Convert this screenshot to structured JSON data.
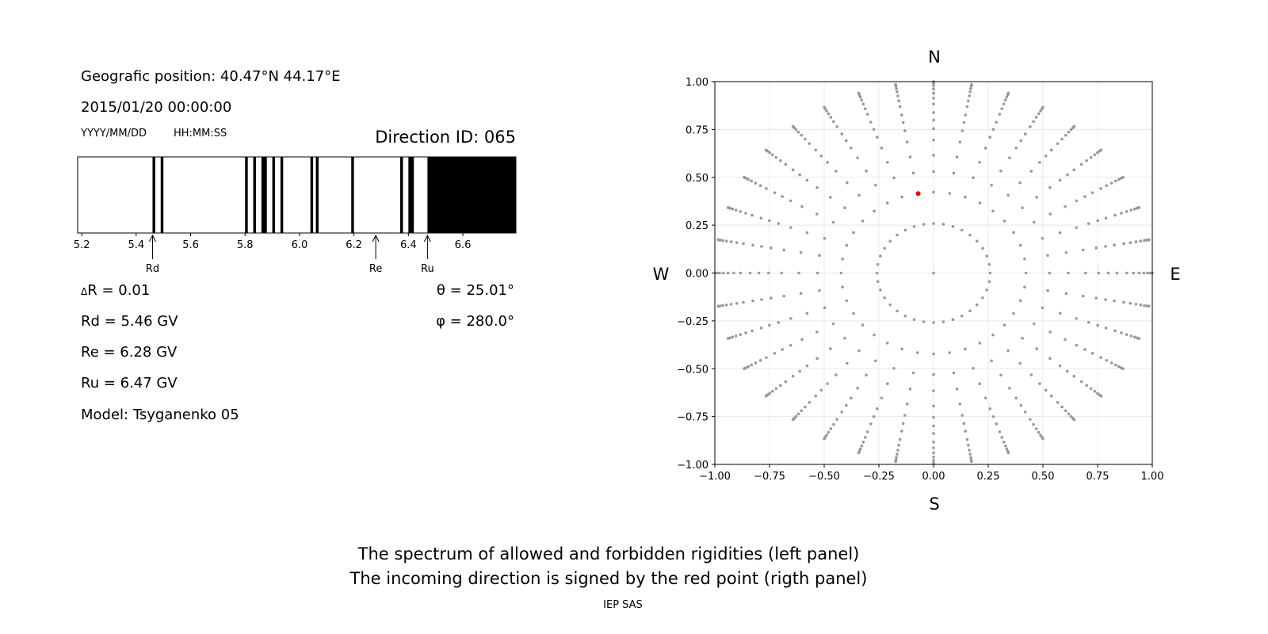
{
  "info": {
    "position": "Geografic position: 40.47°N 44.17°E",
    "datetime": "2015/01/20 00:00:00",
    "date_format": "YYYY/MM/DD",
    "time_format": "HH:MM:SS",
    "direction_id": "Direction ID: 065",
    "delta_r": "R = 0.01",
    "delta_symbol": "Δ",
    "rd": "Rd = 5.46 GV",
    "re": "Re = 6.28 GV",
    "ru": "Ru = 6.47 GV",
    "model": "Model: Tsyganenko 05",
    "theta": "θ = 25.01°",
    "phi": "φ = 280.0°"
  },
  "caption": {
    "line1": "The spectrum of allowed and forbidden rigidities (left panel)",
    "line2": "The incoming direction is signed by the red point (rigth panel)",
    "credit": "IEP SAS"
  },
  "chart_data": [
    {
      "type": "bar",
      "description_role": "rigidity spectrum",
      "xlim": [
        5.185,
        6.795
      ],
      "xticks": [
        "5.2",
        "5.4",
        "5.6",
        "5.8",
        "6.0",
        "6.2",
        "6.4",
        "6.6"
      ],
      "forbidden_bands": [
        [
          5.46,
          5.47
        ],
        [
          5.49,
          5.5
        ],
        [
          5.8,
          5.81
        ],
        [
          5.83,
          5.84
        ],
        [
          5.86,
          5.88
        ],
        [
          5.9,
          5.91
        ],
        [
          5.93,
          5.94
        ],
        [
          6.04,
          6.05
        ],
        [
          6.06,
          6.07
        ],
        [
          6.19,
          6.2
        ],
        [
          6.37,
          6.38
        ],
        [
          6.4,
          6.42
        ],
        [
          6.47,
          6.8
        ]
      ],
      "markers": [
        {
          "label": "Rd",
          "value": 5.46
        },
        {
          "label": "Re",
          "value": 6.28
        },
        {
          "label": "Ru",
          "value": 6.47
        }
      ],
      "colors": {
        "forbidden": "#000000",
        "allowed": "#ffffff"
      }
    },
    {
      "type": "scatter",
      "xlim": [
        -1,
        1
      ],
      "ylim": [
        -1,
        1
      ],
      "xticks": [
        "−1.00",
        "−0.75",
        "−0.50",
        "−0.25",
        "0.00",
        "0.25",
        "0.50",
        "0.75",
        "1.00"
      ],
      "yticks": [
        "−1.00",
        "−0.75",
        "−0.50",
        "−0.25",
        "0.00",
        "0.25",
        "0.50",
        "0.75",
        "1.00"
      ],
      "grid": true,
      "compass": {
        "north": "N",
        "south": "S",
        "west": "W",
        "east": "E"
      },
      "grid_points": {
        "zenith_deg": [
          15,
          25,
          32,
          38,
          44,
          49,
          53,
          57,
          62,
          66,
          70,
          74,
          78,
          82,
          86,
          90
        ],
        "azimuth_step_deg": 10,
        "center_point": true
      },
      "incoming_direction": {
        "x": -0.07,
        "y": 0.415
      },
      "colors": {
        "grid_points": "#999999",
        "incoming": "#ff0000"
      }
    }
  ]
}
